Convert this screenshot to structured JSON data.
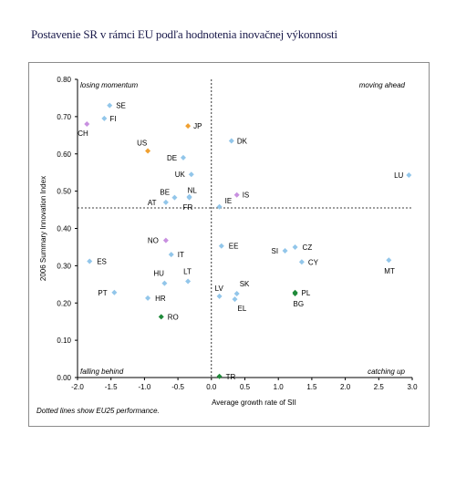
{
  "title": "Postavenie SR v rámci EU podľa hodnotenia inovačnej výkonnosti",
  "note": "Dotted lines show EU25 performance.",
  "chart_data": {
    "type": "scatter",
    "xlabel": "Average growth rate of SII",
    "ylabel": "2006 Summary Innovation Index",
    "xlim": [
      -2.0,
      3.0
    ],
    "ylim": [
      0.0,
      0.8
    ],
    "xticks": [
      "-2.0",
      "-1.5",
      "-1.0",
      "-0.5",
      "0.0",
      "0.5",
      "1.0",
      "1.5",
      "2.0",
      "2.5",
      "3.0"
    ],
    "yticks": [
      "0.00",
      "0.10",
      "0.20",
      "0.30",
      "0.40",
      "0.50",
      "0.60",
      "0.70",
      "0.80"
    ],
    "grid": false,
    "reference_lines": {
      "x": 0.0,
      "y": 0.455
    },
    "quadrants": {
      "top_left": "losing momentum",
      "top_right": "moving ahead",
      "bottom_left": "falling behind",
      "bottom_right": "catching up"
    },
    "colors": {
      "default": "#92c6ea",
      "orange": "#f0a030",
      "violet": "#c890e0",
      "green": "#1f8a3a"
    },
    "points": [
      {
        "label": "SE",
        "x": -1.52,
        "y": 0.73,
        "color": "default"
      },
      {
        "label": "FI",
        "x": -1.6,
        "y": 0.695,
        "color": "default"
      },
      {
        "label": "CH",
        "x": -1.86,
        "y": 0.68,
        "color": "violet"
      },
      {
        "label": "JP",
        "x": -0.35,
        "y": 0.675,
        "color": "orange"
      },
      {
        "label": "US",
        "x": -0.95,
        "y": 0.608,
        "color": "orange"
      },
      {
        "label": "DK",
        "x": 0.3,
        "y": 0.635,
        "color": "default"
      },
      {
        "label": "DE",
        "x": -0.42,
        "y": 0.59,
        "color": "default"
      },
      {
        "label": "UK",
        "x": -0.3,
        "y": 0.545,
        "color": "default"
      },
      {
        "label": "LU",
        "x": 2.95,
        "y": 0.543,
        "color": "default"
      },
      {
        "label": "BE",
        "x": -0.55,
        "y": 0.483,
        "color": "default"
      },
      {
        "label": "NL",
        "x": -0.33,
        "y": 0.483,
        "color": "default"
      },
      {
        "label": "AT",
        "x": -0.68,
        "y": 0.47,
        "color": "default"
      },
      {
        "label": "FR",
        "x": -0.33,
        "y": 0.485,
        "color": "default"
      },
      {
        "label": "IS",
        "x": 0.38,
        "y": 0.49,
        "color": "violet"
      },
      {
        "label": "IE",
        "x": 0.12,
        "y": 0.458,
        "color": "default"
      },
      {
        "label": "NO",
        "x": -0.68,
        "y": 0.368,
        "color": "violet"
      },
      {
        "label": "IT",
        "x": -0.6,
        "y": 0.33,
        "color": "default"
      },
      {
        "label": "EE",
        "x": 0.15,
        "y": 0.353,
        "color": "default"
      },
      {
        "label": "SI",
        "x": 1.1,
        "y": 0.34,
        "color": "default"
      },
      {
        "label": "CZ",
        "x": 1.25,
        "y": 0.35,
        "color": "default"
      },
      {
        "label": "CY",
        "x": 1.35,
        "y": 0.31,
        "color": "default"
      },
      {
        "label": "MT",
        "x": 2.65,
        "y": 0.315,
        "color": "default"
      },
      {
        "label": "ES",
        "x": -1.82,
        "y": 0.312,
        "color": "default"
      },
      {
        "label": "HU",
        "x": -0.7,
        "y": 0.253,
        "color": "default"
      },
      {
        "label": "LT",
        "x": -0.35,
        "y": 0.258,
        "color": "default"
      },
      {
        "label": "PT",
        "x": -1.45,
        "y": 0.228,
        "color": "default"
      },
      {
        "label": "HR",
        "x": -0.95,
        "y": 0.213,
        "color": "default"
      },
      {
        "label": "LV",
        "x": 0.12,
        "y": 0.218,
        "color": "default"
      },
      {
        "label": "SK",
        "x": 0.38,
        "y": 0.225,
        "color": "default"
      },
      {
        "label": "EL",
        "x": 0.35,
        "y": 0.21,
        "color": "default"
      },
      {
        "label": "PL",
        "x": 1.25,
        "y": 0.228,
        "color": "green"
      },
      {
        "label": "BG",
        "x": 1.25,
        "y": 0.225,
        "color": "green"
      },
      {
        "label": "RO",
        "x": -0.75,
        "y": 0.163,
        "color": "green"
      },
      {
        "label": "TR",
        "x": 0.12,
        "y": 0.003,
        "color": "green"
      }
    ]
  }
}
